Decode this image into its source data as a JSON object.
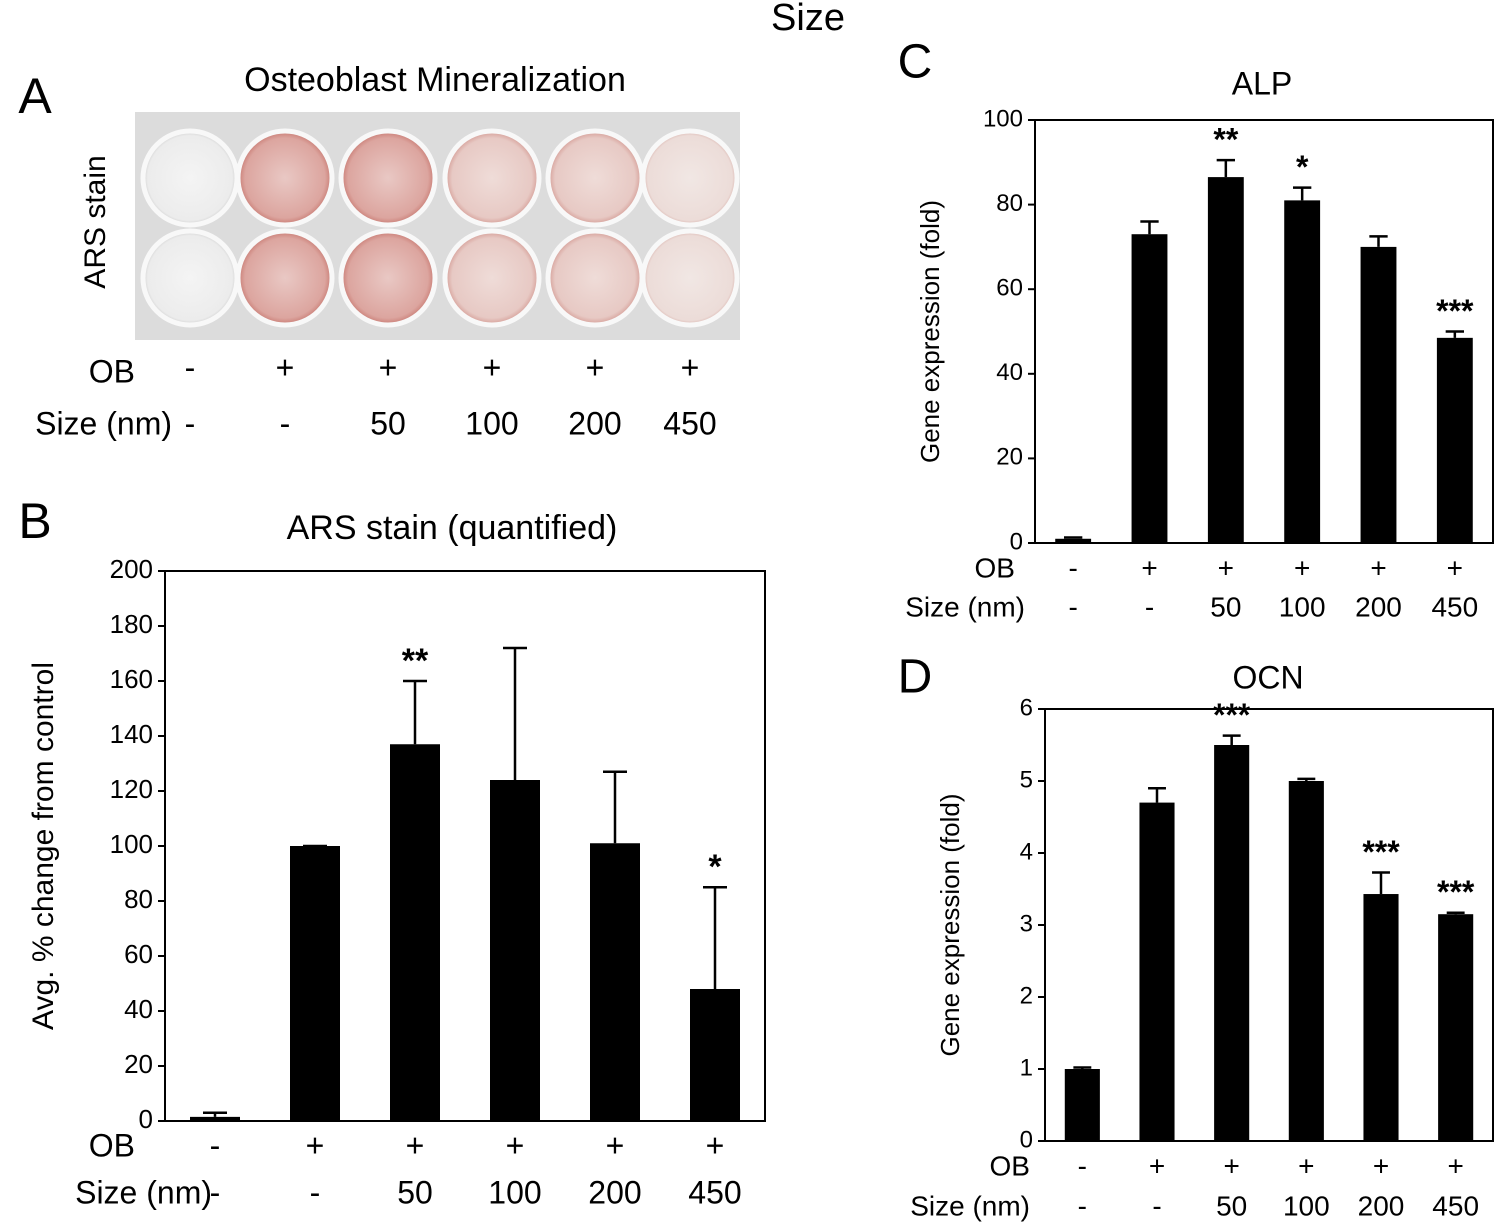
{
  "title": "Size",
  "panel_a": {
    "letter": "A",
    "title": "Osteoblast Mineralization",
    "ylabel": "ARS stain",
    "row_labels": [
      "OB",
      "Size (nm)"
    ],
    "ob": [
      "-",
      "+",
      "+",
      "+",
      "+",
      "+"
    ],
    "size": [
      "-",
      "-",
      "50",
      "100",
      "200",
      "450"
    ]
  },
  "chart_data": [
    {
      "type": "bar",
      "letter": "B",
      "title": "ARS stain (quantified)",
      "ylabel": "Avg. % change from control",
      "row_labels": [
        "OB",
        "Size (nm)"
      ],
      "ob": [
        "-",
        "+",
        "+",
        "+",
        "+",
        "+"
      ],
      "size": [
        "-",
        "-",
        "50",
        "100",
        "200",
        "450"
      ],
      "values": [
        1.5,
        100,
        137,
        124,
        101,
        48
      ],
      "errors": [
        1.5,
        0,
        23,
        48,
        26,
        37
      ],
      "annotations": [
        null,
        null,
        "**",
        null,
        null,
        "*"
      ],
      "color": "#000000",
      "ylim": [
        0,
        200
      ],
      "yticks": [
        0,
        20,
        40,
        60,
        80,
        100,
        120,
        140,
        160,
        180,
        200
      ]
    },
    {
      "type": "bar",
      "letter": "C",
      "title": "ALP",
      "ylabel": "Gene expression (fold)",
      "row_labels": [
        "OB",
        "Size (nm)"
      ],
      "ob": [
        "-",
        "+",
        "+",
        "+",
        "+",
        "+"
      ],
      "size": [
        "-",
        "-",
        "50",
        "100",
        "200",
        "450"
      ],
      "values": [
        1,
        73,
        86.5,
        81,
        70,
        48.5
      ],
      "errors": [
        0.3,
        3,
        4,
        3,
        2.5,
        1.5
      ],
      "annotations": [
        null,
        null,
        "**",
        "*",
        null,
        "***"
      ],
      "color": "#000000",
      "ylim": [
        0,
        100
      ],
      "yticks": [
        0,
        20,
        40,
        60,
        80,
        100
      ]
    },
    {
      "type": "bar",
      "letter": "D",
      "title": "OCN",
      "ylabel": "Gene expression (fold)",
      "row_labels": [
        "OB",
        "Size (nm)"
      ],
      "ob": [
        "-",
        "+",
        "+",
        "+",
        "+",
        "+"
      ],
      "size": [
        "-",
        "-",
        "50",
        "100",
        "200",
        "450"
      ],
      "values": [
        1,
        4.7,
        5.5,
        5.0,
        3.43,
        3.15
      ],
      "errors": [
        0.02,
        0.2,
        0.13,
        0.03,
        0.3,
        0.02
      ],
      "annotations": [
        null,
        null,
        "***",
        null,
        "***",
        "***"
      ],
      "color": "#000000",
      "ylim": [
        0,
        6
      ],
      "yticks": [
        0,
        1,
        2,
        3,
        4,
        5,
        6
      ]
    }
  ]
}
